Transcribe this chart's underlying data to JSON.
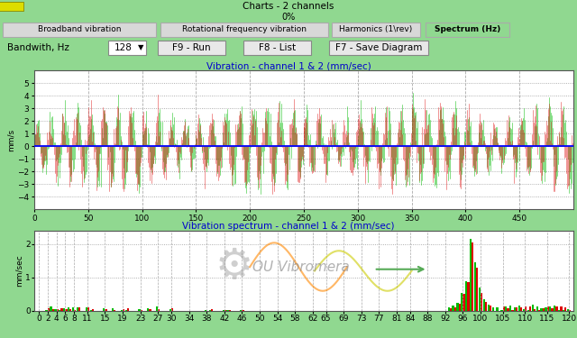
{
  "title_bar": "Charts - 2 channels",
  "progress_bar": "0%",
  "tabs": [
    "Broadband vibration",
    "Rotational frequency vibration",
    "Harmonics (1\\rev)",
    "Spectrum (Hz)"
  ],
  "active_tab": "Spectrum (Hz)",
  "bandwidth_label": "Bandwith, Hz",
  "bandwidth_value": "128",
  "btn1": "F9 - Run",
  "btn2": "F8 - List",
  "btn3": "F7 - Save Diagram",
  "chart1_title": "Vibration - channel 1 & 2 (mm/sec)",
  "chart1_ylabel": "mm/s",
  "chart1_ylim": [
    -5,
    6
  ],
  "chart1_xlim": [
    0,
    500
  ],
  "chart1_xticks": [
    0,
    50,
    100,
    150,
    200,
    250,
    300,
    350,
    400,
    450
  ],
  "chart1_yticks": [
    -4,
    -3,
    -2,
    -1,
    0,
    1,
    2,
    3,
    4,
    5
  ],
  "chart2_title": "Vibration spectrum - channel 1 & 2 (mm/sec)",
  "chart2_ylabel": "mm/sec",
  "chart2_ylim": [
    0,
    2.4
  ],
  "chart2_xlim": [
    -1,
    121
  ],
  "chart2_xticks": [
    0,
    2,
    4,
    6,
    8,
    11,
    15,
    19,
    23,
    27,
    30,
    34,
    38,
    42,
    46,
    50,
    54,
    58,
    62,
    65,
    69,
    73,
    77,
    81,
    84,
    88,
    92,
    96,
    100,
    105,
    110,
    115,
    120
  ],
  "chart2_yticks": [
    0,
    1,
    2
  ],
  "bg_color": "#90d890",
  "chart_bg": "#ffffff",
  "green_color": "#00bb00",
  "red_color": "#dd0000",
  "title_color": "#0000cc",
  "titlebar_bg": "#c8c8c8",
  "progress_bg": "#ffff88",
  "tabs_bg": "#90d890",
  "tab_inactive_bg": "#d8d8d8",
  "tab_inactive_border": "#aaaaaa",
  "toolbar_bg": "#90d890",
  "btn_bg": "#e8e8e8",
  "btn_border": "#888888",
  "watermark_color": "#888888",
  "watermark_text": "OU Vibromera"
}
